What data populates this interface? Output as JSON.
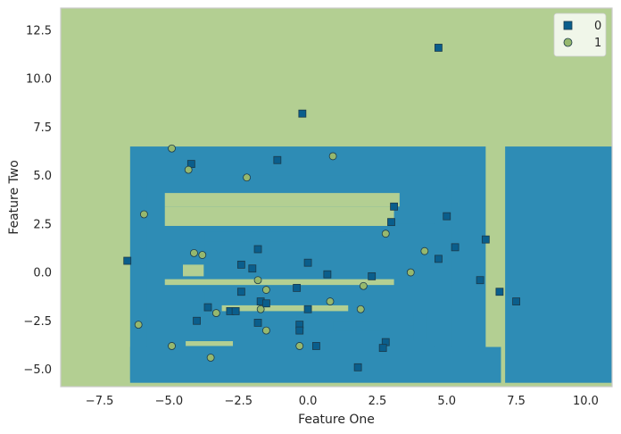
{
  "chart_data": {
    "type": "scatter",
    "title": "",
    "xlabel": "Feature One",
    "ylabel": "Feature Two",
    "xlim": [
      -8.9,
      10.95
    ],
    "ylim": [
      -5.9,
      13.65
    ],
    "x_ticks": [
      "−7.5",
      "−5.0",
      "−2.5",
      "0.0",
      "2.5",
      "5.0",
      "7.5",
      "10.0"
    ],
    "x_tick_values": [
      -7.5,
      -5.0,
      -2.5,
      0.0,
      2.5,
      5.0,
      7.5,
      10.0
    ],
    "y_ticks": [
      "−5.0",
      "−2.5",
      "0.0",
      "2.5",
      "5.0",
      "7.5",
      "10.0",
      "12.5"
    ],
    "y_tick_values": [
      -5.0,
      -2.5,
      0.0,
      2.5,
      5.0,
      7.5,
      10.0,
      12.5
    ],
    "grid": false,
    "legend_position": "top-right",
    "colors": {
      "class_0": "#2e8cb5",
      "class_1": "#b3cf92",
      "marker_0": "#0a5e8c",
      "marker_1": "#96b86e",
      "edge": "#1c3a4a",
      "frame": "#cccccc"
    },
    "series": [
      {
        "name": "0",
        "marker": "square",
        "points": [
          [
            4.7,
            11.6
          ],
          [
            -0.2,
            8.2
          ],
          [
            -4.2,
            5.6
          ],
          [
            -1.1,
            5.8
          ],
          [
            3.1,
            3.4
          ],
          [
            5.0,
            2.9
          ],
          [
            3.0,
            2.6
          ],
          [
            6.4,
            1.7
          ],
          [
            5.3,
            1.3
          ],
          [
            -1.8,
            1.2
          ],
          [
            4.7,
            0.7
          ],
          [
            -6.5,
            0.6
          ],
          [
            0.0,
            0.5
          ],
          [
            -2.4,
            0.4
          ],
          [
            -2.0,
            0.2
          ],
          [
            0.7,
            -0.1
          ],
          [
            2.3,
            -0.2
          ],
          [
            6.2,
            -0.4
          ],
          [
            -0.4,
            -0.8
          ],
          [
            -2.4,
            -1.0
          ],
          [
            6.9,
            -1.0
          ],
          [
            7.5,
            -1.5
          ],
          [
            -1.7,
            -1.5
          ],
          [
            -1.5,
            -1.6
          ],
          [
            -3.6,
            -1.8
          ],
          [
            0.0,
            -1.9
          ],
          [
            -2.8,
            -2.0
          ],
          [
            -2.6,
            -2.0
          ],
          [
            -4.0,
            -2.5
          ],
          [
            -1.8,
            -2.6
          ],
          [
            -0.3,
            -2.7
          ],
          [
            -0.3,
            -3.0
          ],
          [
            2.8,
            -3.6
          ],
          [
            0.3,
            -3.8
          ],
          [
            2.7,
            -3.9
          ],
          [
            1.8,
            -4.9
          ]
        ]
      },
      {
        "name": "1",
        "marker": "circle",
        "points": [
          [
            -4.9,
            6.4
          ],
          [
            0.9,
            6.0
          ],
          [
            -4.3,
            5.3
          ],
          [
            -2.2,
            4.9
          ],
          [
            -5.9,
            3.0
          ],
          [
            2.8,
            2.0
          ],
          [
            4.2,
            1.1
          ],
          [
            -4.1,
            1.0
          ],
          [
            -3.8,
            0.9
          ],
          [
            3.7,
            0.0
          ],
          [
            -1.8,
            -0.4
          ],
          [
            2.0,
            -0.7
          ],
          [
            -1.5,
            -0.9
          ],
          [
            0.8,
            -1.5
          ],
          [
            -1.7,
            -1.9
          ],
          [
            1.9,
            -1.9
          ],
          [
            -3.3,
            -2.1
          ],
          [
            -6.1,
            -2.7
          ],
          [
            -1.5,
            -3.0
          ],
          [
            -4.9,
            -3.8
          ],
          [
            -0.3,
            -3.8
          ],
          [
            -3.5,
            -4.4
          ]
        ]
      }
    ],
    "decision_regions": {
      "background_class": "1",
      "rects_class_0": [
        [
          -6.4,
          6.4,
          -5.55,
          6.5
        ],
        [
          -5.8,
          5.8,
          -4.95,
          5.0
        ],
        [
          -5.15,
          5.15,
          -4.45,
          4.35
        ],
        [
          -5.0,
          5.0,
          4.4,
          4.35
        ],
        [
          4.55,
          5.15,
          -4.45,
          2.6
        ],
        [
          -4.6,
          2.9,
          3.45,
          3.0
        ],
        [
          -4.6,
          4.6,
          2.5,
          2.1
        ],
        [
          -3.7,
          1.5,
          2.1,
          1.6
        ],
        [
          -3.7,
          3.1,
          1.5,
          0.05
        ],
        [
          -3.7,
          1.4,
          -0.1,
          -1.5
        ],
        [
          -3.7,
          1.5,
          -1.6,
          -1.9
        ],
        [
          -3.7,
          -0.3,
          -2.0,
          -3.05
        ],
        [
          -0.4,
          0.9,
          -2.2,
          -2.8
        ],
        [
          0.9,
          2.9,
          -2.5,
          -3.0
        ],
        [
          3.8,
          4.25,
          -2.05,
          -3.5
        ],
        [
          4.7,
          5.15,
          -2.05,
          -3.5
        ],
        [
          -6.4,
          6.95,
          -3.85,
          -5.7
        ],
        [
          7.1,
          11.0,
          6.5,
          -5.7
        ]
      ],
      "rects_class_1": [
        [
          -5.15,
          3.3,
          4.1,
          3.4
        ],
        [
          -5.15,
          3.1,
          3.4,
          2.4
        ],
        [
          -5.15,
          3.1,
          -0.35,
          -0.65
        ],
        [
          -3.1,
          1.45,
          -1.7,
          -2.0
        ],
        [
          -4.5,
          -3.75,
          0.4,
          -0.2
        ],
        [
          -4.4,
          -2.7,
          -3.55,
          -3.8
        ]
      ]
    }
  },
  "legend": {
    "entries": [
      {
        "label": "0",
        "marker": "square"
      },
      {
        "label": "1",
        "marker": "circle"
      }
    ]
  }
}
